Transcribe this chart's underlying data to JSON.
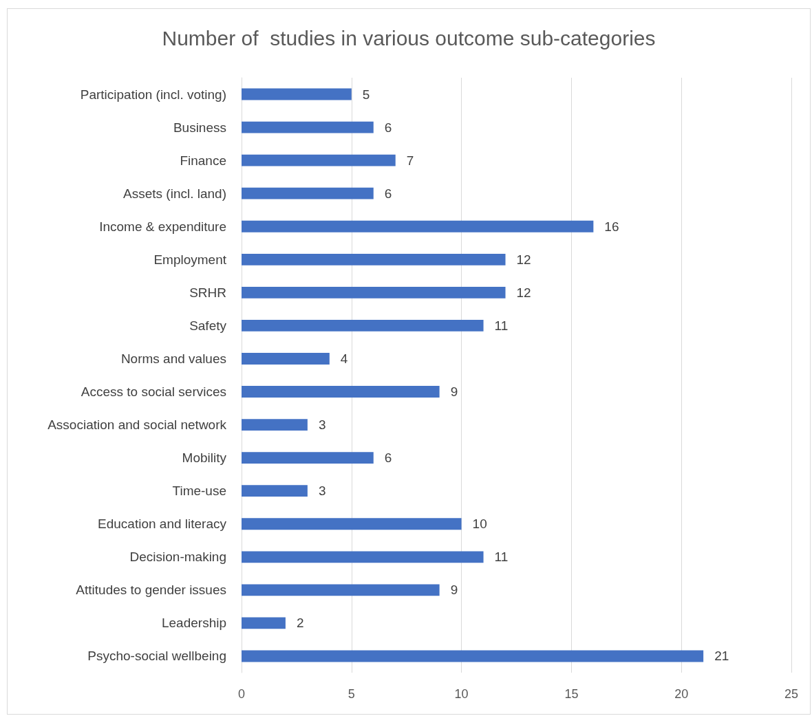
{
  "chart_data": {
    "type": "bar",
    "orientation": "horizontal",
    "title": "Number of  studies in various outcome sub-categories",
    "categories": [
      "Participation (incl. voting)",
      "Business",
      "Finance",
      "Assets (incl. land)",
      "Income & expenditure",
      "Employment",
      "SRHR",
      "Safety",
      "Norms and values",
      "Access to social services",
      "Association and social network",
      "Mobility",
      "Time-use",
      "Education and literacy",
      "Decision-making",
      "Attitudes to gender issues",
      "Leadership",
      "Psycho-social wellbeing"
    ],
    "values": [
      5,
      6,
      7,
      6,
      16,
      12,
      12,
      11,
      4,
      9,
      3,
      6,
      3,
      10,
      11,
      9,
      2,
      21
    ],
    "color": "#4472c4",
    "xlim": [
      0,
      25
    ],
    "xticks": [
      0,
      5,
      10,
      15,
      20,
      25
    ],
    "grid": "x",
    "data_labels": true
  }
}
